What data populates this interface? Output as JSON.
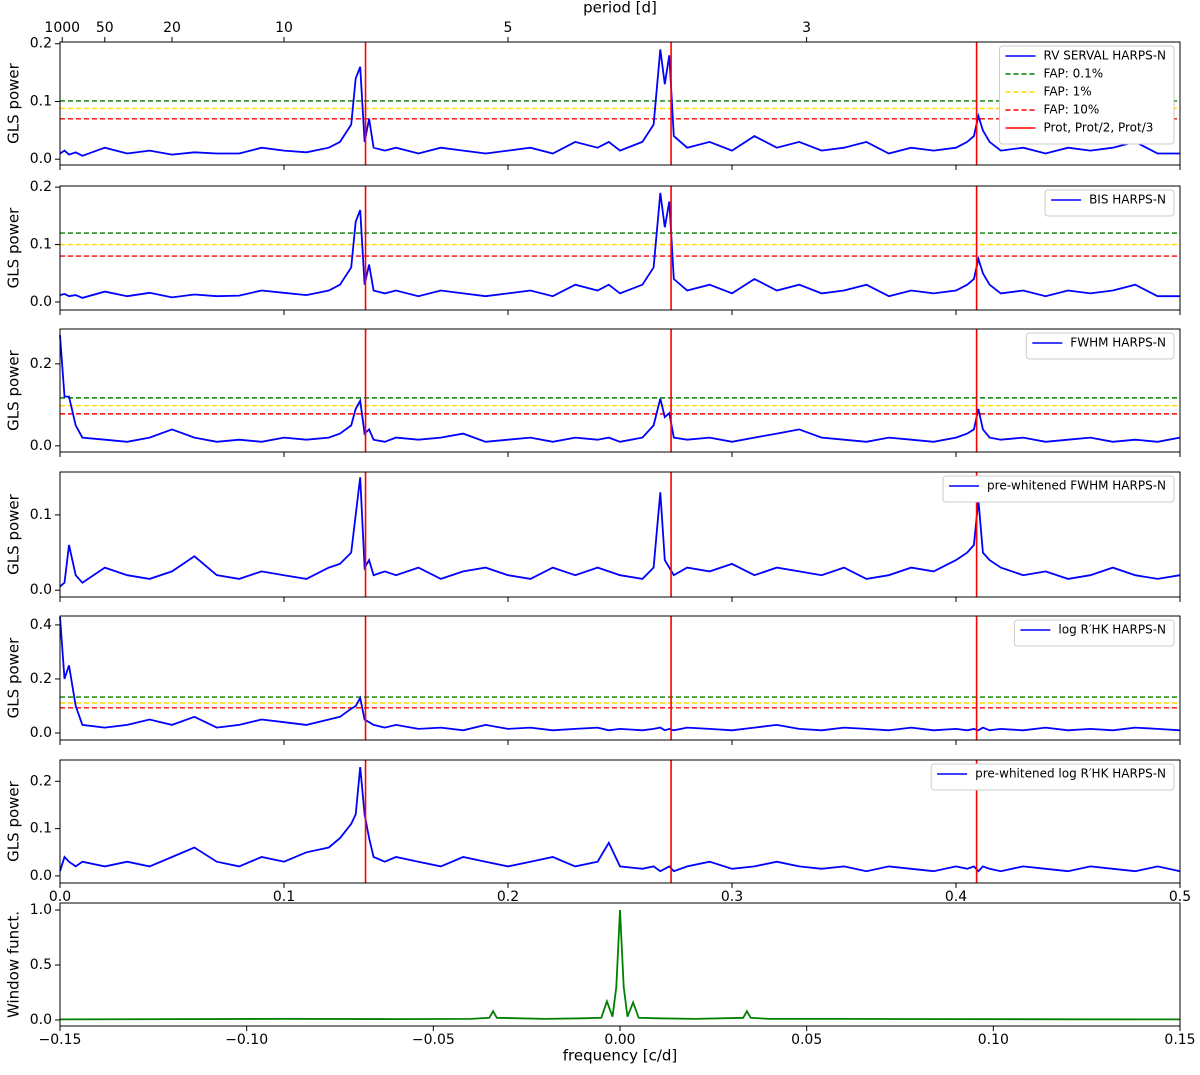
{
  "chart_data": [
    {
      "type": "line",
      "ylabel": "GLS power",
      "x2label": "period [d]",
      "x2ticks": [
        {
          "value": 0.001,
          "label": "1000"
        },
        {
          "value": 0.02,
          "label": "50"
        },
        {
          "value": 0.05,
          "label": "20"
        },
        {
          "value": 0.1,
          "label": "10"
        },
        {
          "value": 0.2,
          "label": "5"
        },
        {
          "value": 0.3333,
          "label": "3"
        }
      ],
      "xlim": [
        0,
        0.5
      ],
      "ylim": [
        -0.01,
        0.203
      ],
      "yticks": [
        {
          "value": 0,
          "label": "0.0"
        },
        0.1,
        0.2
      ],
      "x": [
        0,
        0.002,
        0.004,
        0.007,
        0.01,
        0.02,
        0.03,
        0.04,
        0.05,
        0.06,
        0.07,
        0.08,
        0.09,
        0.1,
        0.11,
        0.12,
        0.125,
        0.13,
        0.132,
        0.134,
        0.136,
        0.138,
        0.14,
        0.145,
        0.15,
        0.16,
        0.17,
        0.18,
        0.19,
        0.2,
        0.21,
        0.22,
        0.23,
        0.24,
        0.245,
        0.25,
        0.26,
        0.265,
        0.268,
        0.27,
        0.272,
        0.274,
        0.28,
        0.29,
        0.3,
        0.31,
        0.32,
        0.33,
        0.34,
        0.35,
        0.36,
        0.37,
        0.38,
        0.39,
        0.4,
        0.405,
        0.408,
        0.41,
        0.412,
        0.415,
        0.42,
        0.43,
        0.44,
        0.45,
        0.46,
        0.47,
        0.48,
        0.49,
        0.5
      ],
      "series": [
        {
          "name": "RV SERVAL HARPS-N",
          "color": "#0000ff",
          "values": [
            0.01,
            0.015,
            0.008,
            0.012,
            0.006,
            0.02,
            0.01,
            0.015,
            0.008,
            0.012,
            0.01,
            0.01,
            0.02,
            0.015,
            0.012,
            0.02,
            0.03,
            0.06,
            0.14,
            0.16,
            0.03,
            0.07,
            0.02,
            0.015,
            0.02,
            0.01,
            0.02,
            0.015,
            0.01,
            0.015,
            0.02,
            0.01,
            0.03,
            0.02,
            0.03,
            0.015,
            0.03,
            0.06,
            0.19,
            0.13,
            0.18,
            0.04,
            0.02,
            0.03,
            0.015,
            0.04,
            0.02,
            0.03,
            0.015,
            0.02,
            0.03,
            0.01,
            0.02,
            0.015,
            0.02,
            0.03,
            0.04,
            0.075,
            0.05,
            0.03,
            0.015,
            0.02,
            0.01,
            0.02,
            0.015,
            0.02,
            0.03,
            0.01,
            0.01
          ]
        }
      ],
      "fap": [
        {
          "name": "FAP: 0.1%",
          "color": "#008000",
          "value": 0.101
        },
        {
          "name": "FAP: 1%",
          "color": "#ffd700",
          "value": 0.088
        },
        {
          "name": "FAP: 10%",
          "color": "#ff0000",
          "value": 0.07
        }
      ],
      "vlines": {
        "name": "Prot, Prot/2, Prot/3",
        "color": "#ff0000",
        "values": [
          0.1364,
          0.2728,
          0.4092
        ]
      }
    },
    {
      "type": "line",
      "ylabel": "GLS power",
      "xlim": [
        0,
        0.5
      ],
      "ylim": [
        -0.014,
        0.202
      ],
      "yticks": [
        {
          "value": 0,
          "label": "0.0"
        },
        0.1,
        0.2
      ],
      "x": [
        0,
        0.002,
        0.004,
        0.007,
        0.01,
        0.02,
        0.03,
        0.04,
        0.05,
        0.06,
        0.07,
        0.08,
        0.09,
        0.1,
        0.11,
        0.12,
        0.125,
        0.13,
        0.132,
        0.134,
        0.136,
        0.138,
        0.14,
        0.145,
        0.15,
        0.16,
        0.17,
        0.18,
        0.19,
        0.2,
        0.21,
        0.22,
        0.23,
        0.24,
        0.245,
        0.25,
        0.26,
        0.265,
        0.268,
        0.27,
        0.272,
        0.274,
        0.28,
        0.29,
        0.3,
        0.31,
        0.32,
        0.33,
        0.34,
        0.35,
        0.36,
        0.37,
        0.38,
        0.39,
        0.4,
        0.405,
        0.408,
        0.41,
        0.412,
        0.415,
        0.42,
        0.43,
        0.44,
        0.45,
        0.46,
        0.47,
        0.48,
        0.49,
        0.5
      ],
      "series": [
        {
          "name": "BIS HARPS-N",
          "color": "#0000ff",
          "values": [
            0.012,
            0.014,
            0.01,
            0.012,
            0.007,
            0.018,
            0.01,
            0.016,
            0.008,
            0.013,
            0.01,
            0.011,
            0.02,
            0.016,
            0.012,
            0.02,
            0.03,
            0.06,
            0.14,
            0.16,
            0.03,
            0.065,
            0.02,
            0.015,
            0.02,
            0.01,
            0.02,
            0.015,
            0.01,
            0.015,
            0.02,
            0.01,
            0.03,
            0.02,
            0.03,
            0.015,
            0.03,
            0.06,
            0.19,
            0.13,
            0.175,
            0.04,
            0.02,
            0.03,
            0.015,
            0.04,
            0.02,
            0.03,
            0.015,
            0.02,
            0.03,
            0.01,
            0.02,
            0.015,
            0.02,
            0.03,
            0.04,
            0.075,
            0.05,
            0.03,
            0.015,
            0.02,
            0.01,
            0.02,
            0.015,
            0.02,
            0.03,
            0.01,
            0.01
          ]
        }
      ],
      "fap": [
        {
          "color": "#008000",
          "value": 0.12
        },
        {
          "color": "#ffd700",
          "value": 0.1
        },
        {
          "color": "#ff0000",
          "value": 0.08
        }
      ]
    },
    {
      "type": "line",
      "ylabel": "GLS power",
      "xlim": [
        0,
        0.5
      ],
      "ylim": [
        -0.015,
        0.285
      ],
      "yticks": [
        {
          "value": 0,
          "label": "0.0"
        },
        0.2
      ],
      "x": [
        0,
        0.002,
        0.004,
        0.007,
        0.01,
        0.02,
        0.03,
        0.04,
        0.05,
        0.06,
        0.07,
        0.08,
        0.09,
        0.1,
        0.11,
        0.12,
        0.125,
        0.13,
        0.132,
        0.134,
        0.136,
        0.138,
        0.14,
        0.145,
        0.15,
        0.16,
        0.17,
        0.18,
        0.19,
        0.2,
        0.21,
        0.22,
        0.23,
        0.24,
        0.245,
        0.25,
        0.26,
        0.265,
        0.268,
        0.27,
        0.272,
        0.274,
        0.28,
        0.29,
        0.3,
        0.31,
        0.32,
        0.33,
        0.34,
        0.35,
        0.36,
        0.37,
        0.38,
        0.39,
        0.4,
        0.405,
        0.408,
        0.41,
        0.412,
        0.415,
        0.42,
        0.43,
        0.44,
        0.45,
        0.46,
        0.47,
        0.48,
        0.49,
        0.5
      ],
      "series": [
        {
          "name": "FWHM HARPS-N",
          "color": "#0000ff",
          "values": [
            0.27,
            0.12,
            0.12,
            0.05,
            0.02,
            0.015,
            0.01,
            0.02,
            0.04,
            0.02,
            0.01,
            0.015,
            0.01,
            0.02,
            0.015,
            0.02,
            0.03,
            0.05,
            0.09,
            0.11,
            0.03,
            0.04,
            0.015,
            0.01,
            0.02,
            0.015,
            0.02,
            0.03,
            0.01,
            0.015,
            0.02,
            0.01,
            0.02,
            0.015,
            0.02,
            0.01,
            0.02,
            0.05,
            0.115,
            0.07,
            0.08,
            0.02,
            0.015,
            0.02,
            0.01,
            0.02,
            0.03,
            0.04,
            0.02,
            0.015,
            0.01,
            0.02,
            0.015,
            0.01,
            0.02,
            0.03,
            0.04,
            0.09,
            0.04,
            0.02,
            0.015,
            0.02,
            0.01,
            0.015,
            0.02,
            0.01,
            0.015,
            0.01,
            0.02
          ]
        }
      ],
      "fap": [
        {
          "color": "#008000",
          "value": 0.117
        },
        {
          "color": "#ffd700",
          "value": 0.098
        },
        {
          "color": "#ff0000",
          "value": 0.078
        }
      ]
    },
    {
      "type": "line",
      "ylabel": "GLS power",
      "xlim": [
        0,
        0.5
      ],
      "ylim": [
        -0.009,
        0.157
      ],
      "yticks": [
        {
          "value": 0,
          "label": "0.0"
        },
        0.1
      ],
      "x": [
        0,
        0.002,
        0.004,
        0.007,
        0.01,
        0.02,
        0.03,
        0.04,
        0.05,
        0.06,
        0.07,
        0.08,
        0.09,
        0.1,
        0.11,
        0.12,
        0.125,
        0.13,
        0.132,
        0.134,
        0.136,
        0.138,
        0.14,
        0.145,
        0.15,
        0.16,
        0.17,
        0.18,
        0.19,
        0.2,
        0.21,
        0.22,
        0.23,
        0.24,
        0.245,
        0.25,
        0.26,
        0.265,
        0.268,
        0.27,
        0.272,
        0.274,
        0.28,
        0.29,
        0.3,
        0.31,
        0.32,
        0.33,
        0.34,
        0.35,
        0.36,
        0.37,
        0.38,
        0.39,
        0.4,
        0.405,
        0.408,
        0.41,
        0.412,
        0.415,
        0.42,
        0.43,
        0.44,
        0.45,
        0.46,
        0.47,
        0.48,
        0.49,
        0.5
      ],
      "series": [
        {
          "name": "pre-whitened FWHM HARPS-N",
          "color": "#0000ff",
          "values": [
            0.005,
            0.01,
            0.06,
            0.02,
            0.01,
            0.03,
            0.02,
            0.015,
            0.025,
            0.045,
            0.02,
            0.015,
            0.025,
            0.02,
            0.015,
            0.03,
            0.035,
            0.05,
            0.1,
            0.15,
            0.03,
            0.04,
            0.02,
            0.025,
            0.02,
            0.03,
            0.015,
            0.025,
            0.03,
            0.02,
            0.015,
            0.03,
            0.02,
            0.03,
            0.025,
            0.02,
            0.015,
            0.03,
            0.13,
            0.04,
            0.03,
            0.02,
            0.03,
            0.025,
            0.035,
            0.02,
            0.03,
            0.025,
            0.02,
            0.03,
            0.015,
            0.02,
            0.03,
            0.025,
            0.04,
            0.05,
            0.06,
            0.12,
            0.05,
            0.04,
            0.03,
            0.02,
            0.025,
            0.015,
            0.02,
            0.03,
            0.02,
            0.015,
            0.02
          ]
        }
      ]
    },
    {
      "type": "line",
      "ylabel": "GLS power",
      "xlim": [
        0,
        0.5
      ],
      "ylim": [
        -0.026,
        0.433
      ],
      "yticks": [
        {
          "value": 0,
          "label": "0.0"
        },
        0.2,
        0.4
      ],
      "x": [
        0,
        0.002,
        0.004,
        0.007,
        0.01,
        0.02,
        0.03,
        0.04,
        0.05,
        0.06,
        0.07,
        0.08,
        0.09,
        0.1,
        0.11,
        0.12,
        0.125,
        0.13,
        0.132,
        0.134,
        0.136,
        0.138,
        0.14,
        0.145,
        0.15,
        0.16,
        0.17,
        0.18,
        0.19,
        0.2,
        0.21,
        0.22,
        0.23,
        0.24,
        0.245,
        0.25,
        0.26,
        0.265,
        0.268,
        0.27,
        0.272,
        0.274,
        0.28,
        0.29,
        0.3,
        0.31,
        0.32,
        0.33,
        0.34,
        0.35,
        0.36,
        0.37,
        0.38,
        0.39,
        0.4,
        0.405,
        0.408,
        0.41,
        0.412,
        0.415,
        0.42,
        0.43,
        0.44,
        0.45,
        0.46,
        0.47,
        0.48,
        0.49,
        0.5
      ],
      "series": [
        {
          "name": "log R′HK HARPS-N",
          "color": "#0000ff",
          "values": [
            0.43,
            0.2,
            0.25,
            0.1,
            0.03,
            0.02,
            0.03,
            0.05,
            0.03,
            0.06,
            0.02,
            0.03,
            0.05,
            0.04,
            0.03,
            0.05,
            0.06,
            0.09,
            0.1,
            0.13,
            0.05,
            0.04,
            0.03,
            0.02,
            0.03,
            0.015,
            0.02,
            0.01,
            0.03,
            0.015,
            0.02,
            0.01,
            0.015,
            0.02,
            0.01,
            0.015,
            0.01,
            0.015,
            0.02,
            0.01,
            0.015,
            0.01,
            0.02,
            0.015,
            0.01,
            0.02,
            0.03,
            0.015,
            0.01,
            0.02,
            0.015,
            0.01,
            0.02,
            0.01,
            0.015,
            0.01,
            0.015,
            0.01,
            0.02,
            0.01,
            0.015,
            0.01,
            0.02,
            0.01,
            0.015,
            0.01,
            0.02,
            0.015,
            0.01
          ]
        }
      ],
      "fap": [
        {
          "color": "#008000",
          "value": 0.133
        },
        {
          "color": "#ffd700",
          "value": 0.111
        },
        {
          "color": "#ff0000",
          "value": 0.093
        }
      ]
    },
    {
      "type": "line",
      "ylabel": "GLS power",
      "xlim": [
        0,
        0.5
      ],
      "ylim": [
        -0.015,
        0.245
      ],
      "yticks": [
        {
          "value": 0,
          "label": "0.0"
        },
        0.1,
        0.2
      ],
      "xticks": [
        {
          "value": 0,
          "label": "0.0"
        },
        0.1,
        0.2,
        0.3,
        0.4,
        0.5
      ],
      "x": [
        0,
        0.002,
        0.004,
        0.007,
        0.01,
        0.02,
        0.03,
        0.04,
        0.05,
        0.06,
        0.07,
        0.08,
        0.09,
        0.1,
        0.11,
        0.12,
        0.125,
        0.13,
        0.132,
        0.134,
        0.136,
        0.138,
        0.14,
        0.145,
        0.15,
        0.16,
        0.17,
        0.18,
        0.19,
        0.2,
        0.21,
        0.22,
        0.23,
        0.24,
        0.245,
        0.25,
        0.26,
        0.265,
        0.268,
        0.27,
        0.272,
        0.274,
        0.28,
        0.29,
        0.3,
        0.31,
        0.32,
        0.33,
        0.34,
        0.35,
        0.36,
        0.37,
        0.38,
        0.39,
        0.4,
        0.405,
        0.408,
        0.41,
        0.412,
        0.415,
        0.42,
        0.43,
        0.44,
        0.45,
        0.46,
        0.47,
        0.48,
        0.49,
        0.5
      ],
      "series": [
        {
          "name": "pre-whitened log R′HK HARPS-N",
          "color": "#0000ff",
          "values": [
            0.01,
            0.04,
            0.03,
            0.02,
            0.03,
            0.02,
            0.03,
            0.02,
            0.04,
            0.06,
            0.03,
            0.02,
            0.04,
            0.03,
            0.05,
            0.06,
            0.08,
            0.11,
            0.13,
            0.23,
            0.13,
            0.08,
            0.04,
            0.03,
            0.04,
            0.03,
            0.02,
            0.04,
            0.03,
            0.02,
            0.03,
            0.04,
            0.02,
            0.03,
            0.07,
            0.02,
            0.015,
            0.02,
            0.01,
            0.015,
            0.02,
            0.01,
            0.02,
            0.03,
            0.015,
            0.02,
            0.03,
            0.02,
            0.015,
            0.02,
            0.01,
            0.02,
            0.015,
            0.01,
            0.02,
            0.015,
            0.02,
            0.01,
            0.02,
            0.015,
            0.01,
            0.02,
            0.015,
            0.01,
            0.02,
            0.015,
            0.01,
            0.02,
            0.01
          ]
        }
      ]
    },
    {
      "type": "line",
      "ylabel": "Window funct.",
      "xlabel": "frequency [c/d]",
      "xlim": [
        -0.15,
        0.15
      ],
      "ylim": [
        -0.055,
        1.064
      ],
      "yticks": [
        {
          "value": 0,
          "label": "0.0"
        },
        0.5,
        {
          "value": 1,
          "label": "1.0"
        }
      ],
      "xticks": [
        {
          "value": -0.15,
          "label": "−0.15"
        },
        {
          "value": -0.1,
          "label": "−0.10"
        },
        {
          "value": -0.05,
          "label": "−0.05"
        },
        {
          "value": 0,
          "label": "0.00"
        },
        0.05,
        {
          "value": 0.1,
          "label": "0.10"
        },
        0.15
      ],
      "x": [
        -0.15,
        -0.12,
        -0.09,
        -0.06,
        -0.04,
        -0.035,
        -0.034,
        -0.033,
        -0.02,
        -0.01,
        -0.005,
        -0.0035,
        -0.002,
        -0.001,
        0,
        0.001,
        0.002,
        0.0035,
        0.005,
        0.01,
        0.02,
        0.033,
        0.034,
        0.035,
        0.04,
        0.06,
        0.09,
        0.12,
        0.15
      ],
      "series": [
        {
          "name": "Window function",
          "color": "#008000",
          "values": [
            0.005,
            0.008,
            0.01,
            0.008,
            0.01,
            0.02,
            0.08,
            0.02,
            0.01,
            0.015,
            0.02,
            0.17,
            0.03,
            0.3,
            1.0,
            0.3,
            0.03,
            0.16,
            0.02,
            0.015,
            0.01,
            0.02,
            0.08,
            0.02,
            0.01,
            0.01,
            0.008,
            0.006,
            0.005
          ]
        }
      ]
    }
  ]
}
